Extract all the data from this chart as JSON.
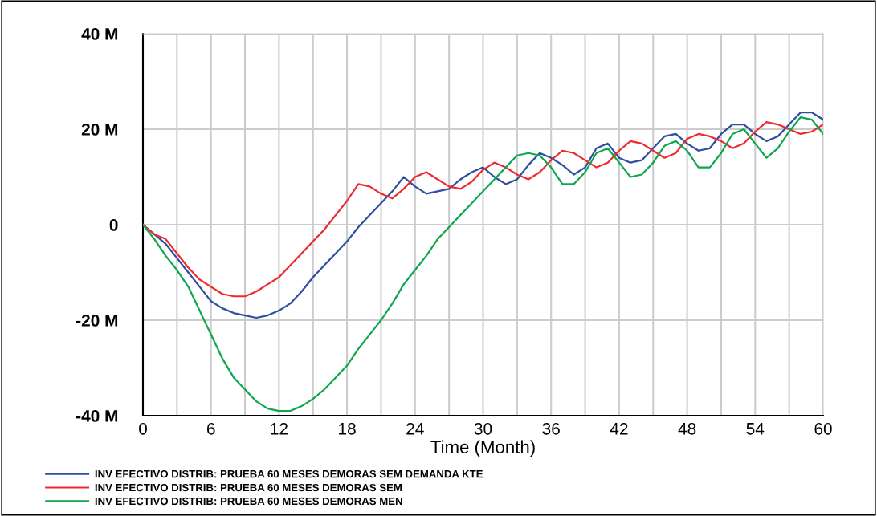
{
  "chart_data": {
    "type": "line",
    "xlabel": "Time (Month)",
    "x": [
      0,
      1,
      2,
      3,
      4,
      5,
      6,
      7,
      8,
      9,
      10,
      11,
      12,
      13,
      14,
      15,
      16,
      17,
      18,
      19,
      20,
      21,
      22,
      23,
      24,
      25,
      26,
      27,
      28,
      29,
      30,
      31,
      32,
      33,
      34,
      35,
      36,
      37,
      38,
      39,
      40,
      41,
      42,
      43,
      44,
      45,
      46,
      47,
      48,
      49,
      50,
      51,
      52,
      53,
      54,
      55,
      56,
      57,
      58,
      59,
      60
    ],
    "series": [
      {
        "name": "INV EFECTIVO DISTRIB: PRUEBA 60 MESES DEMORAS SEM DEMANDA KTE",
        "color": "#2e4fa0",
        "values": [
          0,
          -2,
          -4,
          -7,
          -10,
          -13,
          -16,
          -17.5,
          -18.5,
          -19,
          -19.5,
          -19,
          -18,
          -16.5,
          -14,
          -11,
          -8.5,
          -6,
          -3.5,
          -0.5,
          2,
          4.5,
          7,
          10,
          8,
          6.5,
          7,
          7.5,
          9.5,
          11,
          12,
          10,
          8.5,
          9.5,
          12.5,
          15,
          14,
          12.5,
          10.5,
          12,
          16,
          17,
          14,
          13,
          13.5,
          16,
          18.5,
          19,
          17,
          15.5,
          16,
          19,
          21,
          21,
          19,
          17.5,
          18.5,
          21,
          23.5,
          23.5,
          22
        ]
      },
      {
        "name": "INV EFECTIVO DISTRIB: PRUEBA 60 MESES DEMORAS SEM",
        "color": "#ee2a2f",
        "values": [
          0,
          -2,
          -3,
          -6,
          -9,
          -11.5,
          -13,
          -14.5,
          -15,
          -15,
          -14,
          -12.5,
          -11,
          -8.5,
          -6,
          -3.5,
          -1,
          2,
          5,
          8.5,
          8,
          6.5,
          5.5,
          7.5,
          10,
          11,
          9.5,
          8,
          7.5,
          9,
          11.5,
          13,
          12,
          10.5,
          9.5,
          11,
          13.5,
          15.5,
          15,
          13.5,
          12,
          13,
          15.5,
          17.5,
          17,
          15.5,
          14,
          15,
          18,
          19,
          18.5,
          17.5,
          16,
          17,
          19.5,
          21.5,
          21,
          20,
          19,
          19.5,
          21
        ]
      },
      {
        "name": "INV EFECTIVO DISTRIB: PRUEBA 60 MESES DEMORAS MEN",
        "color": "#0fa650",
        "values": [
          0,
          -3,
          -6.5,
          -9.5,
          -13,
          -18,
          -23,
          -28,
          -32,
          -34.5,
          -37,
          -38.5,
          -39,
          -39,
          -38,
          -36.5,
          -34.5,
          -32,
          -29.5,
          -26,
          -23,
          -20,
          -16.5,
          -12.5,
          -9.5,
          -6.5,
          -3,
          -0.5,
          2,
          4.5,
          7,
          9.5,
          12,
          14.5,
          15,
          14.5,
          12,
          8.5,
          8.5,
          11,
          15,
          16,
          13,
          10,
          10.5,
          13,
          16.5,
          17.5,
          15.5,
          12,
          12,
          15,
          19,
          20,
          17,
          14,
          16,
          19.5,
          22.5,
          22,
          19
        ]
      }
    ],
    "xlim": [
      0,
      60
    ],
    "xticks": [
      0,
      {
        "value": 3,
        "label": null
      },
      6,
      {
        "value": 9,
        "label": null
      },
      12,
      {
        "value": 15,
        "label": null
      },
      18,
      {
        "value": 21,
        "label": null
      },
      24,
      {
        "value": 27,
        "label": null
      },
      30,
      {
        "value": 33,
        "label": null
      },
      36,
      {
        "value": 39,
        "label": null
      },
      42,
      {
        "value": 45,
        "label": null
      },
      48,
      {
        "value": 51,
        "label": null
      },
      54,
      {
        "value": 57,
        "label": null
      },
      60
    ],
    "ylim": [
      -40,
      40
    ],
    "yticks": [
      {
        "value": -40,
        "label": "-40 M"
      },
      {
        "value": -20,
        "label": "-20 M"
      },
      0,
      {
        "value": 20,
        "label": "20 M"
      },
      {
        "value": 40,
        "label": "40 M"
      }
    ],
    "grid": true,
    "legend": "bottom",
    "marker": "none",
    "line_style": "solid"
  }
}
